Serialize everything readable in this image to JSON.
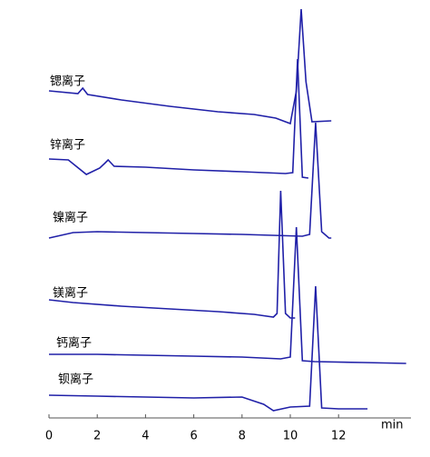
{
  "chart_data": {
    "type": "line",
    "xlabel": "min",
    "xlim": [
      0,
      15
    ],
    "xticks": [
      0,
      2,
      4,
      6,
      8,
      10,
      12
    ],
    "ylim": [
      0,
      450
    ],
    "color": "#2020a8",
    "series": [
      {
        "name": "锶离子",
        "x": [
          0,
          1.2,
          1.4,
          1.6,
          3,
          5,
          7,
          8.5,
          9.4,
          10.0,
          10.25,
          10.45,
          10.65,
          10.9,
          11.7
        ],
        "values": [
          360,
          357,
          363,
          356,
          350,
          343,
          337,
          334,
          330,
          324,
          360,
          450,
          370,
          326,
          327
        ]
      },
      {
        "name": "锌离子",
        "x": [
          0,
          0.8,
          1.55,
          2.1,
          2.3,
          2.45,
          2.7,
          4,
          6,
          8,
          9.8,
          10.1,
          10.3,
          10.5,
          10.75
        ],
        "values": [
          285,
          284,
          268,
          275,
          280,
          284,
          277,
          276,
          273,
          271,
          269,
          270,
          395,
          265,
          264
        ]
      },
      {
        "name": "镍离子",
        "x": [
          0,
          1,
          2,
          4,
          6,
          8,
          10.5,
          10.8,
          11.05,
          11.3,
          11.6,
          11.7
        ],
        "values": [
          198,
          204,
          205,
          204,
          203,
          202,
          200,
          202,
          325,
          205,
          198,
          198
        ]
      },
      {
        "name": "镁离子",
        "x": [
          0,
          1,
          3,
          5,
          7,
          8.5,
          9.3,
          9.45,
          9.6,
          9.8,
          10.0,
          10.2
        ],
        "values": [
          130,
          127,
          123,
          120,
          117,
          114,
          111,
          115,
          250,
          115,
          110,
          110
        ]
      },
      {
        "name": "钙离子",
        "x": [
          0,
          2,
          4,
          6,
          8,
          9.6,
          10.0,
          10.25,
          10.5,
          11,
          13,
          14.8
        ],
        "values": [
          70,
          70,
          69,
          68,
          67,
          65,
          67,
          210,
          63,
          62,
          61,
          60
        ]
      },
      {
        "name": "钡离子",
        "x": [
          0,
          2,
          4,
          6,
          8,
          8.9,
          9.3,
          10,
          10.8,
          11.05,
          11.3,
          12,
          13.2
        ],
        "values": [
          25,
          24,
          23,
          22,
          23,
          15,
          8,
          12,
          13,
          145,
          11,
          10,
          10
        ]
      }
    ]
  }
}
